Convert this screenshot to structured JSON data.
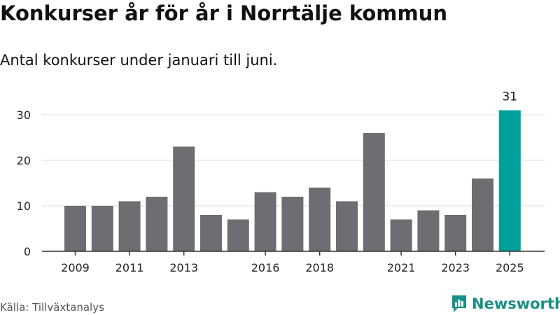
{
  "title": "Konkurser år för år i Norrtälje kommun",
  "subtitle": "Antal konkurser under januari till juni.",
  "source": "Källa: Tillväxtanalys",
  "brand": "Newsworthy",
  "colors": {
    "bar": "#6d6d72",
    "highlight": "#00a19a",
    "grid": "#dddddd",
    "brand": "#1a8f84"
  },
  "chart_data": {
    "type": "bar",
    "title": "Konkurser år för år i Norrtälje kommun",
    "subtitle": "Antal konkurser under januari till juni.",
    "xlabel": "",
    "ylabel": "",
    "categories": [
      "2009",
      "2010",
      "2011",
      "2012",
      "2013",
      "2014",
      "2015",
      "2016",
      "2017",
      "2018",
      "2019",
      "2020",
      "2021",
      "2022",
      "2023",
      "2024",
      "2025"
    ],
    "values": [
      10,
      10,
      11,
      12,
      23,
      8,
      7,
      13,
      12,
      14,
      11,
      26,
      7,
      9,
      8,
      16,
      31
    ],
    "highlight_index": 16,
    "highlight_label": "31",
    "x_tick_labels": [
      "2009",
      "2011",
      "2013",
      "2016",
      "2018",
      "2021",
      "2023",
      "2025"
    ],
    "y_ticks": [
      0,
      10,
      20,
      30
    ],
    "ylim": [
      0,
      31
    ],
    "grid": true,
    "legend": "none"
  }
}
